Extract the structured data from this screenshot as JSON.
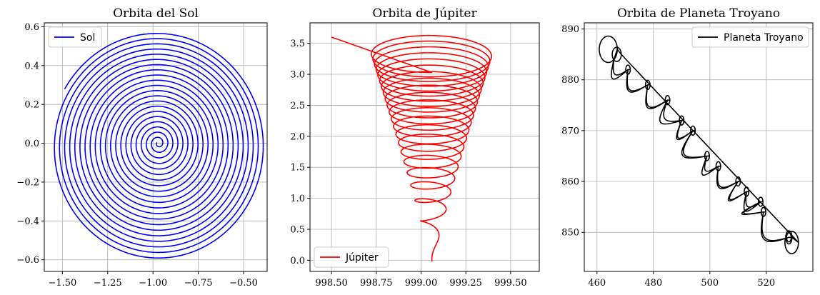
{
  "chart_data": [
    {
      "type": "line",
      "title": "Orbita del Sol",
      "xlabel": "",
      "ylabel": "",
      "xlim": [
        -1.6,
        -0.37
      ],
      "ylim": [
        -0.66,
        0.62
      ],
      "xticks": [
        -1.5,
        -1.25,
        -1.0,
        -0.75,
        -0.5
      ],
      "xtick_labels": [
        "−1.50",
        "−1.25",
        "−1.00",
        "−0.75",
        "−0.50"
      ],
      "yticks": [
        -0.6,
        -0.4,
        -0.2,
        0.0,
        0.2,
        0.4,
        0.6
      ],
      "ytick_labels": [
        "−0.6",
        "−0.4",
        "−0.2",
        "0.0",
        "0.2",
        "0.4",
        "0.6"
      ],
      "grid": true,
      "legend": "upper-left",
      "series": [
        {
          "name": "Sol",
          "color": "#0000ff",
          "shape": "spiral",
          "center": [
            -0.97,
            0.0
          ],
          "start_point": [
            -0.962,
            0.0
          ],
          "end_point": [
            -1.48,
            0.3
          ],
          "outer_extent": {
            "x": [
              -1.57,
              -0.38
            ],
            "y": [
              -0.61,
              0.57
            ]
          },
          "turns": 21
        }
      ]
    },
    {
      "type": "line",
      "title": "Orbita de Júpiter",
      "xlabel": "",
      "ylabel": "",
      "xlim": [
        998.38,
        999.66
      ],
      "ylim": [
        -0.18,
        3.83
      ],
      "xticks": [
        998.5,
        998.75,
        999.0,
        999.25,
        999.5
      ],
      "xtick_labels": [
        "998.50",
        "998.75",
        "999.00",
        "999.25",
        "999.50"
      ],
      "yticks": [
        0.0,
        0.5,
        1.0,
        1.5,
        2.0,
        2.5,
        3.0,
        3.5
      ],
      "ytick_labels": [
        "0.0",
        "0.5",
        "1.0",
        "1.5",
        "2.0",
        "2.5",
        "3.0",
        "3.5"
      ],
      "grid": true,
      "legend": "lower-left",
      "series": [
        {
          "name": "Júpiter",
          "color": "#ff0000",
          "shape": "conical-helix",
          "center_x": 999.06,
          "y_range": [
            0.0,
            3.65
          ],
          "max_half_width": 0.33,
          "start_point": [
            999.03,
            0.0
          ],
          "end_point": [
            998.5,
            3.6
          ],
          "turns": 21
        }
      ]
    },
    {
      "type": "line",
      "title": "Orbita de Planeta Troyano",
      "xlabel": "",
      "ylabel": "",
      "xlim": [
        455.5,
        536.5
      ],
      "ylim": [
        842.3,
        891.2
      ],
      "xticks": [
        460,
        480,
        500,
        520
      ],
      "xtick_labels": [
        "460",
        "480",
        "500",
        "520"
      ],
      "yticks": [
        850,
        860,
        870,
        880,
        890
      ],
      "ytick_labels": [
        "850",
        "860",
        "870",
        "880",
        "890"
      ],
      "grid": true,
      "legend": "upper-right",
      "series": [
        {
          "name": "Planeta Troyano",
          "color": "#000000",
          "shape": "loops-along-diagonal",
          "path_from": [
            465,
            885
          ],
          "path_to": [
            530,
            847
          ],
          "cusps": [
            [
              466,
              884
            ],
            [
              471,
              882
            ],
            [
              478,
              879
            ],
            [
              485,
              876
            ],
            [
              490,
              872
            ],
            [
              494,
              870
            ],
            [
              499,
              865
            ],
            [
              503,
              863
            ],
            [
              510,
              860
            ],
            [
              513,
              858
            ],
            [
              518,
              856
            ],
            [
              519,
              854
            ],
            [
              528,
              849
            ]
          ]
        }
      ]
    }
  ]
}
